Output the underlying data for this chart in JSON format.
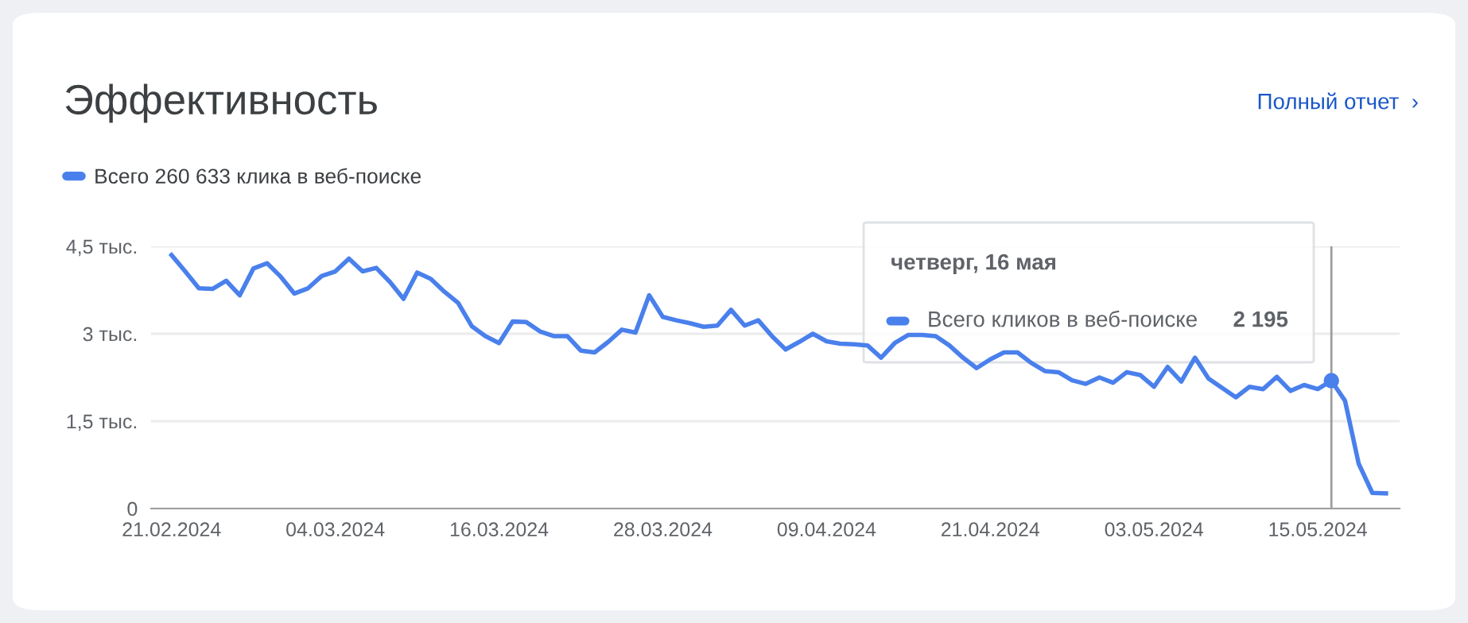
{
  "chart_data": {
    "type": "line",
    "title": "Эффективность",
    "annotations": [
      "Полный отчет  ›",
      "четверг, 16 мая",
      "Всего кликов в веб-поиске",
      "2 195"
    ],
    "x": [
      "2024-02-21",
      "2024-02-22",
      "2024-02-23",
      "2024-02-24",
      "2024-02-25",
      "2024-02-26",
      "2024-02-27",
      "2024-02-28",
      "2024-02-29",
      "2024-03-01",
      "2024-03-02",
      "2024-03-03",
      "2024-03-04",
      "2024-03-05",
      "2024-03-06",
      "2024-03-07",
      "2024-03-08",
      "2024-03-09",
      "2024-03-10",
      "2024-03-11",
      "2024-03-12",
      "2024-03-13",
      "2024-03-14",
      "2024-03-15",
      "2024-03-16",
      "2024-03-17",
      "2024-03-18",
      "2024-03-19",
      "2024-03-20",
      "2024-03-21",
      "2024-03-22",
      "2024-03-23",
      "2024-03-24",
      "2024-03-25",
      "2024-03-26",
      "2024-03-27",
      "2024-03-28",
      "2024-03-29",
      "2024-03-30",
      "2024-03-31",
      "2024-04-01",
      "2024-04-02",
      "2024-04-03",
      "2024-04-04",
      "2024-04-05",
      "2024-04-06",
      "2024-04-07",
      "2024-04-08",
      "2024-04-09",
      "2024-04-10",
      "2024-04-11",
      "2024-04-12",
      "2024-04-13",
      "2024-04-14",
      "2024-04-15",
      "2024-04-16",
      "2024-04-17",
      "2024-04-18",
      "2024-04-19",
      "2024-04-20",
      "2024-04-21",
      "2024-04-22",
      "2024-04-23",
      "2024-04-24",
      "2024-04-25",
      "2024-04-26",
      "2024-04-27",
      "2024-04-28",
      "2024-04-29",
      "2024-04-30",
      "2024-05-01",
      "2024-05-02",
      "2024-05-03",
      "2024-05-04",
      "2024-05-05",
      "2024-05-06",
      "2024-05-07",
      "2024-05-08",
      "2024-05-09",
      "2024-05-10",
      "2024-05-11",
      "2024-05-12",
      "2024-05-13",
      "2024-05-14",
      "2024-05-15",
      "2024-05-16",
      "2024-05-17",
      "2024-05-18",
      "2024-05-19",
      "2024-05-20"
    ],
    "series": [
      {
        "name": "Всего 260 633 клика в веб-поиске",
        "color": "#4a80ec",
        "values": [
          4.35,
          4.07,
          3.78,
          3.77,
          3.91,
          3.66,
          4.12,
          4.21,
          3.98,
          3.69,
          3.78,
          3.99,
          4.07,
          4.29,
          4.07,
          4.13,
          3.89,
          3.6,
          4.05,
          3.94,
          3.72,
          3.53,
          3.13,
          2.96,
          2.84,
          3.21,
          3.2,
          3.04,
          2.96,
          2.96,
          2.71,
          2.68,
          2.86,
          3.07,
          3.02,
          3.66,
          3.29,
          3.23,
          3.18,
          3.12,
          3.14,
          3.41,
          3.14,
          3.23,
          2.96,
          2.73,
          2.86,
          3.0,
          2.87,
          2.83,
          2.82,
          2.8,
          2.59,
          2.84,
          2.98,
          2.98,
          2.96,
          2.8,
          2.59,
          2.41,
          2.56,
          2.68,
          2.68,
          2.5,
          2.36,
          2.34,
          2.2,
          2.14,
          2.25,
          2.16,
          2.34,
          2.29,
          2.09,
          2.43,
          2.18,
          2.59,
          2.23,
          2.07,
          1.91,
          2.09,
          2.05,
          2.26,
          2.02,
          2.12,
          2.05,
          2.195,
          1.85,
          0.77,
          0.27,
          0.26
        ]
      }
    ],
    "xlim": [
      "2024-02-19T12:00",
      "2024-05-21"
    ],
    "xticks": [
      {
        "value": "2024-02-21",
        "label": "21.02.2024"
      },
      {
        "value": "2024-03-04",
        "label": "04.03.2024"
      },
      {
        "value": "2024-03-16",
        "label": "16.03.2024"
      },
      {
        "value": "2024-03-28",
        "label": "28.03.2024"
      },
      {
        "value": "2024-04-09",
        "label": "09.04.2024"
      },
      {
        "value": "2024-04-21",
        "label": "21.04.2024"
      },
      {
        "value": "2024-05-03",
        "label": "03.05.2024"
      },
      {
        "value": "2024-05-15",
        "label": "15.05.2024"
      }
    ],
    "ylim": [
      0,
      4.5
    ],
    "yticks": [
      0,
      {
        "value": 1.5,
        "label": "1,5 тыс."
      },
      {
        "value": 3,
        "label": "3 тыс."
      },
      {
        "value": 4.5,
        "label": "4,5 тыс."
      }
    ],
    "ref_lines": [
      {
        "axis": "x",
        "value": "2024-05-16",
        "color": "#9e9e9e"
      }
    ],
    "grid": "y",
    "legend": "top left",
    "marker": "none",
    "line_style": "solid"
  }
}
